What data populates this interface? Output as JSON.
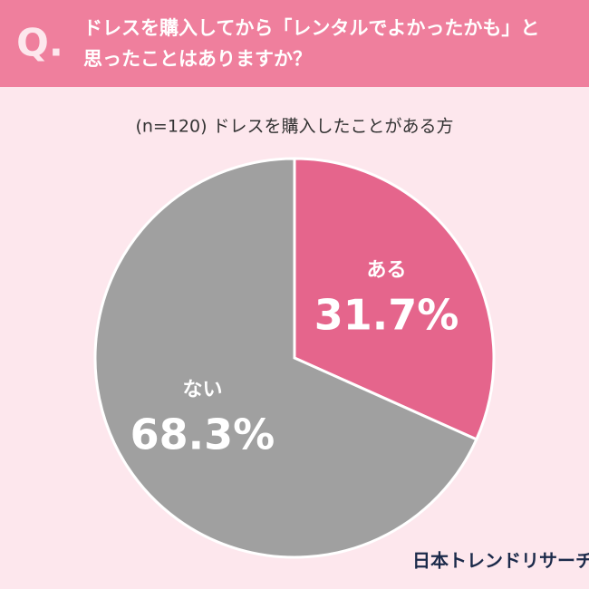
{
  "chart_data": {
    "type": "pie",
    "question_label": "Q.",
    "title_lines": [
      "ドレスを購入してから「レンタルでよかったかも」と",
      "思ったことはありますか？"
    ],
    "subtitle": "(n=120) ドレスを購入したことがある方",
    "categories": [
      "ある",
      "ない"
    ],
    "values": [
      31.7,
      68.3
    ],
    "value_labels": [
      "31.7%",
      "68.3%"
    ],
    "colors": [
      "#e5658c",
      "#a0a0a0"
    ],
    "source": "日本トレンドリサーチ"
  }
}
